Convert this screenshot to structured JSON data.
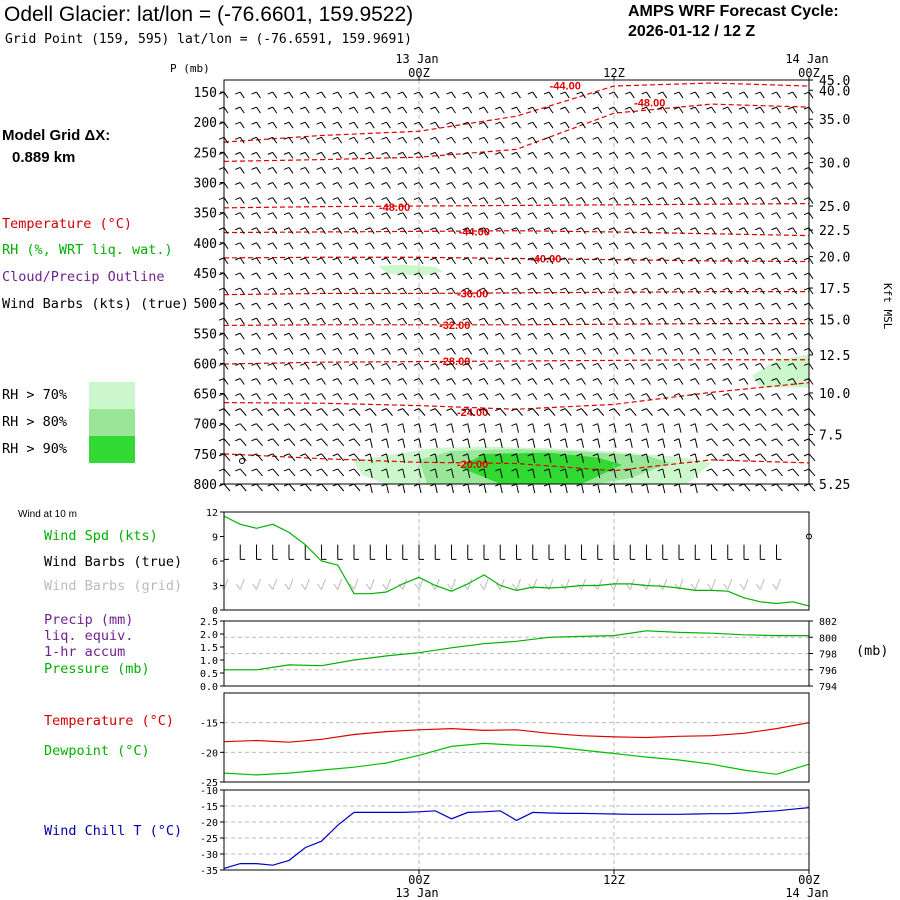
{
  "header": {
    "title": "Odell Glacier:  lat/lon = (-76.6601, 159.9522)",
    "grid_point": "Grid Point (159, 595) lat/lon = (-76.6591, 159.9691)",
    "cycle_line1": "AMPS WRF Forecast Cycle:",
    "cycle_line2": "2026-01-12 / 12  Z"
  },
  "legend": {
    "model_grid_line1": "Model Grid ΔX:",
    "model_grid_line2": "0.889 km",
    "temperature": "Temperature (°C)",
    "rh": "RH (%, WRT liq. wat.)",
    "cloud": "Cloud/Precip Outline",
    "wind_barbs": "Wind Barbs (kts) (true)",
    "rh70": "RH > 70%",
    "rh80": "RH > 80%",
    "rh90": "RH > 90%",
    "rh_colors": [
      "#ccf7cc",
      "#99e699",
      "#33d933"
    ]
  },
  "time_axis": {
    "top_labels": [
      {
        "hour": 12,
        "tick": "00Z",
        "date": "13 Jan"
      },
      {
        "hour": 24,
        "tick": "12Z",
        "date": ""
      },
      {
        "hour": 36,
        "tick": "00Z",
        "date": "14 Jan"
      }
    ],
    "bottom_labels": [
      {
        "hour": 12,
        "tick": "00Z",
        "date": "13 Jan"
      },
      {
        "hour": 24,
        "tick": "12Z",
        "date": ""
      },
      {
        "hour": 36,
        "tick": "00Z",
        "date": "14 Jan"
      }
    ],
    "hours_range": [
      0,
      36
    ]
  },
  "chart_data": [
    {
      "type": "heatmap",
      "name": "time-height cross section",
      "ylabel_left": "P (mb)",
      "ylabel_right": "Kft MSL",
      "pressure_ticks": [
        150,
        200,
        250,
        300,
        350,
        400,
        450,
        500,
        550,
        600,
        650,
        700,
        750,
        800
      ],
      "kft_ticks": [
        {
          "p": 130,
          "label": "45.0"
        },
        {
          "p": 147,
          "label": "40.0"
        },
        {
          "p": 195,
          "label": "35.0"
        },
        {
          "p": 267,
          "label": "30.0"
        },
        {
          "p": 339,
          "label": "25.0"
        },
        {
          "p": 379,
          "label": "22.5"
        },
        {
          "p": 423,
          "label": "20.0"
        },
        {
          "p": 475,
          "label": "17.5"
        },
        {
          "p": 527,
          "label": "15.0"
        },
        {
          "p": 586,
          "label": "12.5"
        },
        {
          "p": 649,
          "label": "10.0"
        },
        {
          "p": 718,
          "label": "7.5"
        },
        {
          "p": 800,
          "label": "5.25"
        }
      ],
      "temperature_contours": [
        {
          "label": "-48.00",
          "lx": 10.5,
          "lp": 341,
          "points": [
            [
              0,
              342
            ],
            [
              6,
              340
            ],
            [
              12,
              339
            ],
            [
              18,
              338
            ],
            [
              24,
              337
            ],
            [
              30,
              336
            ],
            [
              36,
              335
            ]
          ]
        },
        {
          "label": "-48.00",
          "lx": 26.2,
          "lp": 167,
          "points": [
            [
              0,
              265
            ],
            [
              6,
              262
            ],
            [
              12,
              258
            ],
            [
              18,
              245
            ],
            [
              24,
              185
            ],
            [
              30,
              170
            ],
            [
              36,
              175
            ]
          ]
        },
        {
          "label": "-44.00",
          "lx": 21.0,
          "lp": 139,
          "points": [
            [
              0,
              233
            ],
            [
              6,
              222
            ],
            [
              12,
              215
            ],
            [
              18,
              190
            ],
            [
              24,
              140
            ],
            [
              30,
              135
            ],
            [
              36,
              140
            ]
          ]
        },
        {
          "label": "-44.00",
          "lx": 15.4,
          "lp": 381,
          "points": [
            [
              0,
              383
            ],
            [
              6,
              382
            ],
            [
              12,
              381
            ],
            [
              18,
              380
            ],
            [
              24,
              382
            ],
            [
              30,
              385
            ],
            [
              36,
              388
            ]
          ]
        },
        {
          "label": "-40.00",
          "lx": 19.8,
          "lp": 426,
          "points": [
            [
              0,
              425
            ],
            [
              6,
              424
            ],
            [
              12,
              424
            ],
            [
              18,
              426
            ],
            [
              24,
              428
            ],
            [
              30,
              430
            ],
            [
              36,
              431
            ]
          ]
        },
        {
          "label": "-36.00",
          "lx": 15.3,
          "lp": 484,
          "points": [
            [
              0,
              486
            ],
            [
              6,
              484
            ],
            [
              12,
              484
            ],
            [
              18,
              483
            ],
            [
              24,
              482
            ],
            [
              30,
              481
            ],
            [
              36,
              481
            ]
          ]
        },
        {
          "label": "-32.00",
          "lx": 14.2,
          "lp": 536,
          "points": [
            [
              0,
              537
            ],
            [
              6,
              536
            ],
            [
              12,
              536
            ],
            [
              18,
              536
            ],
            [
              24,
              535
            ],
            [
              30,
              534
            ],
            [
              36,
              534
            ]
          ]
        },
        {
          "label": "-28.00",
          "lx": 14.2,
          "lp": 596,
          "points": [
            [
              0,
              601
            ],
            [
              6,
              598
            ],
            [
              12,
              597
            ],
            [
              18,
              596
            ],
            [
              24,
              595
            ],
            [
              30,
              594
            ],
            [
              36,
              594
            ]
          ]
        },
        {
          "label": "-24.00",
          "lx": 15.3,
          "lp": 681,
          "points": [
            [
              0,
              665
            ],
            [
              6,
              666
            ],
            [
              12,
              670
            ],
            [
              18,
              676
            ],
            [
              24,
              668
            ],
            [
              30,
              648
            ],
            [
              36,
              632
            ]
          ]
        },
        {
          "label": "-20.00",
          "lx": 15.3,
          "lp": 767,
          "points": [
            [
              0,
              750
            ],
            [
              6,
              758
            ],
            [
              12,
              764
            ],
            [
              18,
              766
            ],
            [
              24,
              778
            ],
            [
              30,
              760
            ],
            [
              36,
              765
            ]
          ]
        }
      ]
    },
    {
      "type": "line",
      "name": "Wind at 10 m",
      "title": "Wind at 10 m",
      "labels": [
        "Wind Spd (kts)",
        "Wind Barbs (true)",
        "Wind Barbs (grid)"
      ],
      "y_ticks": [
        0,
        3,
        6,
        9,
        12
      ],
      "ylim": [
        0,
        12
      ],
      "x": [
        0,
        1,
        2,
        3,
        4,
        5,
        6,
        7,
        8,
        9,
        10,
        11,
        12,
        13,
        14,
        15,
        16,
        17,
        18,
        19,
        20,
        21,
        22,
        23,
        24,
        25,
        26,
        27,
        28,
        29,
        30,
        31,
        32,
        33,
        34,
        35,
        36
      ],
      "series": [
        {
          "name": "Wind Spd (kts)",
          "color": "#00b000",
          "values": [
            11.5,
            10.5,
            10,
            10.5,
            9.5,
            8,
            6,
            5.5,
            2,
            2,
            2.2,
            3.2,
            4,
            3,
            2.3,
            3.2,
            4.3,
            3,
            2.4,
            2.8,
            2.7,
            2.8,
            3,
            3,
            3.2,
            3.2,
            3,
            2.9,
            2.7,
            2.4,
            2.4,
            2.3,
            1.5,
            1,
            0.8,
            1,
            0.5
          ]
        }
      ]
    },
    {
      "type": "line",
      "name": "Precip and pressure",
      "labels": [
        "Precip (mm)",
        "liq. equiv.",
        "1-hr accum",
        "Pressure (mb)"
      ],
      "precip_ticks": [
        "0.0",
        "0.5",
        "1.0",
        "1.5",
        "2.0",
        "2.5"
      ],
      "pressure_ticks": [
        794,
        796,
        798,
        800,
        802
      ],
      "ylim_precip": [
        0,
        2.5
      ],
      "ylim_pressure": [
        794,
        802
      ],
      "ylabel_right": "(mb)",
      "x": [
        0,
        2,
        4,
        6,
        8,
        10,
        12,
        14,
        16,
        18,
        20,
        22,
        24,
        26,
        28,
        30,
        32,
        34,
        36
      ],
      "series": [
        {
          "name": "Pressure (mb)",
          "color": "#00b000",
          "values": [
            796.0,
            796.0,
            796.6,
            796.5,
            797.2,
            797.7,
            798.1,
            798.7,
            799.2,
            799.5,
            800.0,
            800.1,
            800.2,
            800.8,
            800.6,
            800.5,
            800.3,
            800.2,
            800.2
          ]
        }
      ]
    },
    {
      "type": "line",
      "name": "Temperature and dewpoint",
      "labels": [
        "Temperature (°C)",
        "Dewpoint (°C)"
      ],
      "y_ticks": [
        -25,
        -20,
        -15
      ],
      "ylim": [
        -25,
        -10
      ],
      "x": [
        0,
        2,
        4,
        6,
        8,
        10,
        12,
        14,
        16,
        18,
        20,
        22,
        24,
        26,
        28,
        30,
        32,
        34,
        36
      ],
      "series": [
        {
          "name": "Temperature (°C)",
          "color": "#e00000",
          "values": [
            -18.2,
            -18.0,
            -18.3,
            -17.8,
            -17.0,
            -16.5,
            -16.2,
            -16.0,
            -16.3,
            -16.2,
            -16.8,
            -17.2,
            -17.4,
            -17.5,
            -17.3,
            -17.2,
            -16.8,
            -16.0,
            -15.0
          ]
        },
        {
          "name": "Dewpoint (°C)",
          "color": "#00c000",
          "values": [
            -23.5,
            -23.8,
            -23.5,
            -23.0,
            -22.5,
            -21.8,
            -20.5,
            -19.0,
            -18.5,
            -18.8,
            -19.0,
            -19.6,
            -20.2,
            -20.8,
            -21.3,
            -22.0,
            -23.0,
            -23.7,
            -22.0
          ]
        }
      ]
    },
    {
      "type": "line",
      "name": "Wind chill",
      "labels": [
        "Wind Chill T (°C)"
      ],
      "y_ticks": [
        -35,
        -30,
        -25,
        -20,
        -15,
        -10
      ],
      "ylim": [
        -35,
        -10
      ],
      "x": [
        0,
        1,
        2,
        3,
        4,
        5,
        6,
        7,
        8,
        9,
        10,
        11,
        12,
        13,
        14,
        15,
        16,
        17,
        18,
        19,
        20,
        21,
        22,
        23,
        24,
        25,
        26,
        27,
        28,
        29,
        30,
        31,
        32,
        33,
        34,
        35,
        36
      ],
      "series": [
        {
          "name": "Wind Chill T (°C)",
          "color": "#0000c0",
          "values": [
            -34.5,
            -33,
            -33,
            -33.5,
            -32,
            -28,
            -26,
            -21,
            -17,
            -17,
            -17,
            -17,
            -16.8,
            -16.5,
            -19,
            -17,
            -16.8,
            -16.5,
            -19.5,
            -17,
            -17.2,
            -17.3,
            -17.3,
            -17.4,
            -17.5,
            -17.6,
            -17.6,
            -17.6,
            -17.6,
            -17.5,
            -17.4,
            -17.4,
            -17.2,
            -16.8,
            -16.5,
            -16,
            -15.5
          ]
        }
      ]
    }
  ],
  "barbs": {
    "levels": [
      150,
      175,
      200,
      225,
      250,
      275,
      300,
      325,
      350,
      375,
      400,
      425,
      450,
      475,
      500,
      525,
      550,
      575,
      600,
      625,
      650,
      675,
      700,
      725,
      750,
      775,
      800
    ],
    "hours": [
      0,
      1,
      2,
      3,
      4,
      5,
      6,
      7,
      8,
      9,
      10,
      11,
      12,
      13,
      14,
      15,
      16,
      17,
      18,
      19,
      20,
      21,
      22,
      23,
      24,
      25,
      26,
      27,
      28,
      29,
      30,
      31,
      32,
      33,
      34,
      35,
      36
    ]
  }
}
